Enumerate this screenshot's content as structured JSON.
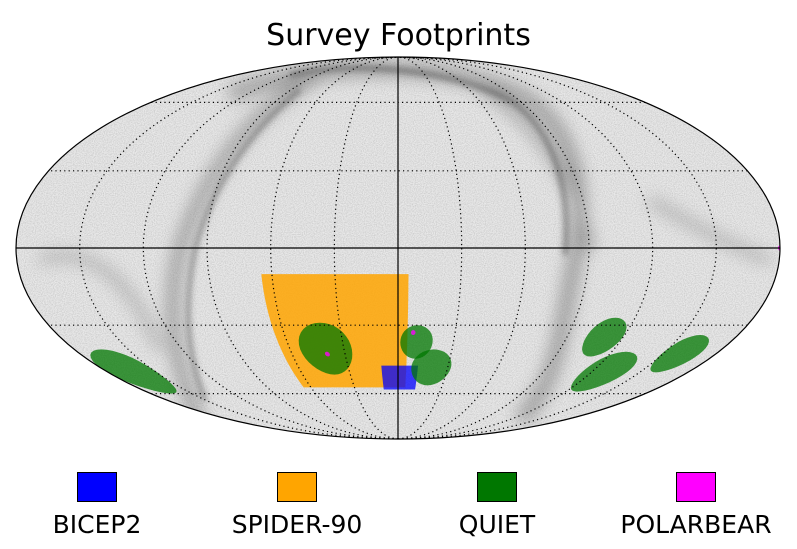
{
  "chart_data": {
    "type": "map",
    "projection": "mollweide",
    "title": "Survey Footprints",
    "graticule": {
      "meridian_step_deg": 30,
      "parallel_step_deg": 30
    },
    "background": "galactic dust emission map (greyscale)",
    "series": [
      {
        "name": "BICEP2",
        "color": "#0000ff",
        "regions": [
          {
            "lon_range": [
              -12,
              10
            ],
            "lat_range": [
              -58,
              -47
            ]
          }
        ]
      },
      {
        "name": "SPIDER-90",
        "color": "#ffa500",
        "regions": [
          {
            "lon_range": [
              -5,
              65
            ],
            "lat_range": [
              -57,
              -10
            ]
          }
        ]
      },
      {
        "name": "QUIET",
        "color": "#007700",
        "regions": [
          {
            "center": [
              -110,
              -35
            ],
            "radius": 8
          },
          {
            "center": [
              -128,
              -50
            ],
            "radius": 9
          },
          {
            "center": [
              -20,
              -48
            ],
            "radius": 8
          },
          {
            "center": [
              -10,
              -37
            ],
            "radius": 7
          },
          {
            "center": [
              40,
              -40
            ],
            "radius": 11
          },
          {
            "center": [
              165,
              -50
            ],
            "radius": 10
          },
          {
            "center": [
              -160,
              -42
            ],
            "radius": 8
          }
        ]
      },
      {
        "name": "POLARBEAR",
        "color": "#ff00ff",
        "regions": [
          {
            "center": [
              -180,
              0
            ],
            "radius": 1
          },
          {
            "center": [
              -8,
              -33
            ],
            "radius": 1
          },
          {
            "center": [
              40,
              -42
            ],
            "radius": 1
          }
        ]
      }
    ],
    "legend": {
      "position": "bottom",
      "entries": [
        "BICEP2",
        "SPIDER-90",
        "QUIET",
        "POLARBEAR"
      ]
    }
  }
}
